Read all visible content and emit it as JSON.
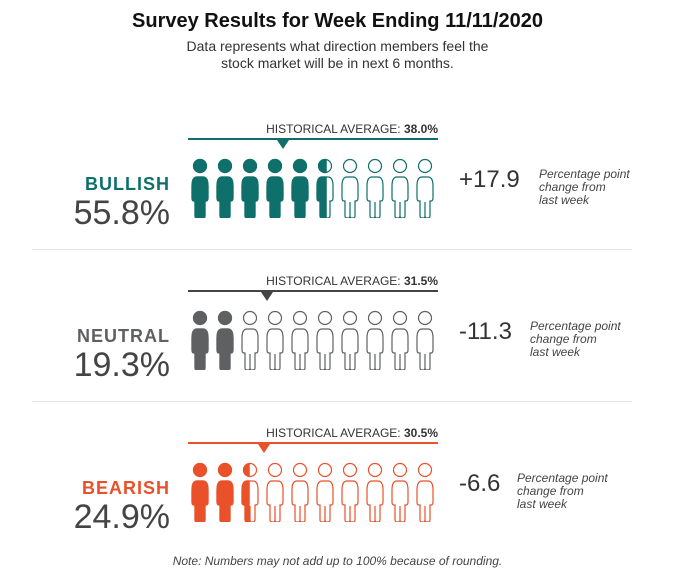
{
  "header": {
    "title": "Survey Results for Week Ending 11/11/2020",
    "subtitle_line1": "Data represents what direction members feel the",
    "subtitle_line2": "stock market will be in next 6 months."
  },
  "footer": {
    "note": "Note: Numbers may not add up to 100% because of rounding."
  },
  "change_note_lines": [
    "Percentage point",
    "change from",
    "last week"
  ],
  "chart_data": {
    "type": "pictograph",
    "title": "Survey Results for Week Ending 11/11/2020",
    "icons_per_row": 10,
    "unit_percent": 10,
    "series": [
      {
        "key": "bullish",
        "name": "BULLISH",
        "value": 55.8,
        "value_label": "55.8%",
        "historical_average": 38.0,
        "historical_label": "HISTORICAL AVERAGE:",
        "historical_value_label": "38.0%",
        "change": 17.9,
        "change_label": "+17.9",
        "color": "#0e6f6b"
      },
      {
        "key": "neutral",
        "name": "NEUTRAL",
        "value": 19.3,
        "value_label": "19.3%",
        "historical_average": 31.5,
        "historical_label": "HISTORICAL AVERAGE:",
        "historical_value_label": "31.5%",
        "change": -11.3,
        "change_label": "-11.3",
        "color": "#5f6062"
      },
      {
        "key": "bearish",
        "name": "BEARISH",
        "value": 24.9,
        "value_label": "24.9%",
        "historical_average": 30.5,
        "historical_label": "HISTORICAL AVERAGE:",
        "historical_value_label": "30.5%",
        "change": -6.6,
        "change_label": "-6.6",
        "color": "#e9512a"
      }
    ]
  }
}
